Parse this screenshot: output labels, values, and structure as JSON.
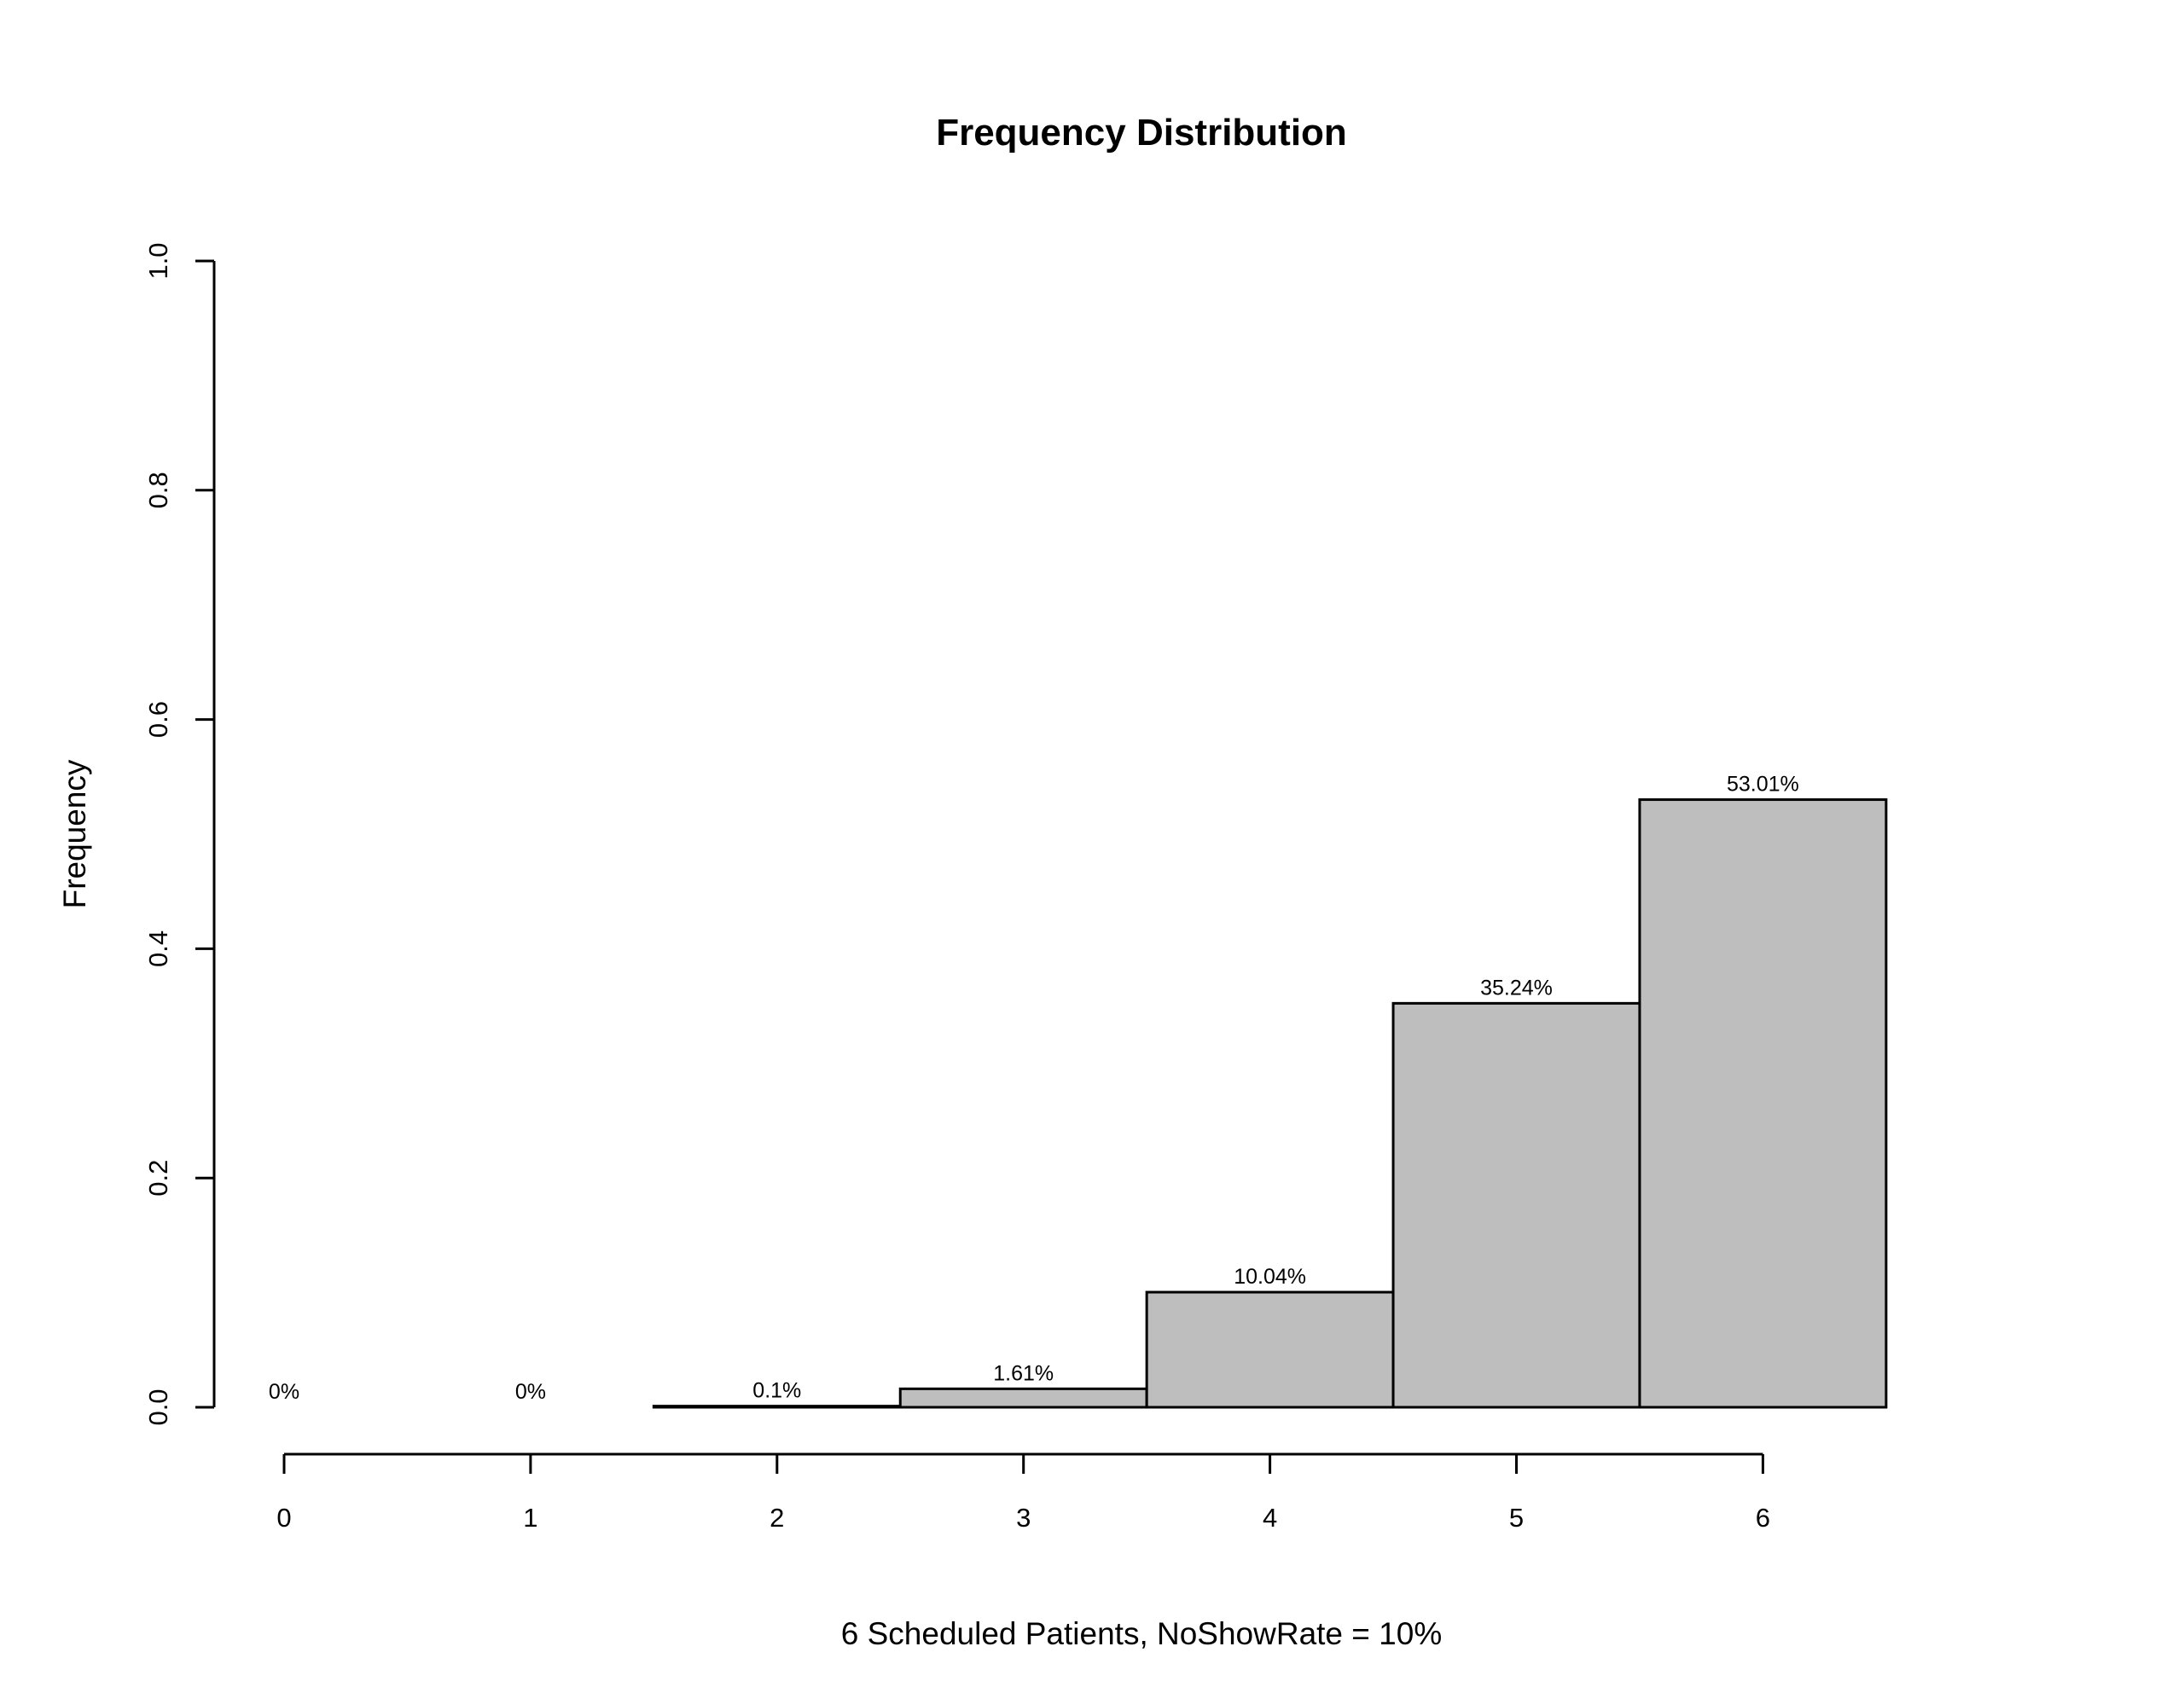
{
  "chart_data": {
    "type": "bar",
    "title": "Frequency Distribution",
    "xlabel": "6 Scheduled Patients,  NoShowRate = 10%",
    "ylabel": "Frequency",
    "categories": [
      "0",
      "1",
      "2",
      "3",
      "4",
      "5",
      "6"
    ],
    "values": [
      0.0,
      0.0,
      0.001,
      0.0161,
      0.1004,
      0.3524,
      0.5301
    ],
    "data_labels": [
      "0%",
      "0%",
      "0.1%",
      "1.61%",
      "10.04%",
      "35.24%",
      "53.01%"
    ],
    "ylim": [
      0,
      1
    ],
    "y_ticks": [
      "0.0",
      "0.2",
      "0.4",
      "0.6",
      "0.8",
      "1.0"
    ],
    "x_ticks": [
      "0",
      "1",
      "2",
      "3",
      "4",
      "5",
      "6"
    ],
    "grid": false,
    "legend": "none",
    "bar_color": "#bebebe",
    "edge_color": "#000000"
  }
}
